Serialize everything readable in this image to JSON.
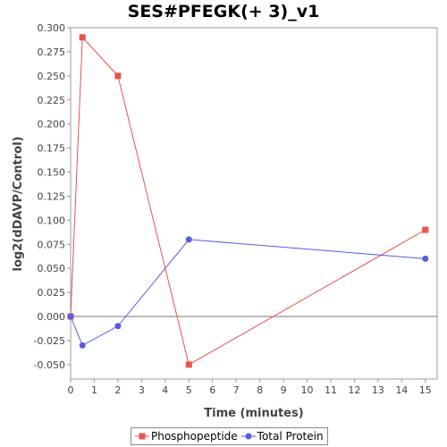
{
  "chart_data": {
    "type": "line",
    "title": "SES#PFEGK(+ 3)_v1",
    "xlabel": "Time (minutes)",
    "ylabel": "log2(dDAVP/Control)",
    "xlim": [
      0,
      15.5
    ],
    "ylim": [
      -0.065,
      0.3
    ],
    "x_ticks": [
      "0",
      "1",
      "2",
      "3",
      "4",
      "5",
      "6",
      "7",
      "8",
      "9",
      "10",
      "11",
      "12",
      "13",
      "14",
      "15"
    ],
    "y_ticks": [
      "-0.050",
      "-0.025",
      "0.000",
      "0.025",
      "0.050",
      "0.075",
      "0.100",
      "0.125",
      "0.150",
      "0.175",
      "0.200",
      "0.225",
      "0.250",
      "0.275",
      "0.300"
    ],
    "zero_line": true,
    "grid": false,
    "legend_position": "bottom",
    "series": [
      {
        "name": "Phosphopeptide",
        "color": "#e8534f",
        "marker": "square",
        "x": [
          0,
          0.5,
          2,
          5,
          15
        ],
        "y": [
          0.0,
          0.29,
          0.25,
          -0.05,
          0.09
        ]
      },
      {
        "name": "Total Protein",
        "color": "#5a5ae8",
        "marker": "circle",
        "x": [
          0,
          0.5,
          2,
          5,
          15
        ],
        "y": [
          0.0,
          -0.03,
          -0.01,
          0.08,
          0.06
        ]
      }
    ]
  }
}
